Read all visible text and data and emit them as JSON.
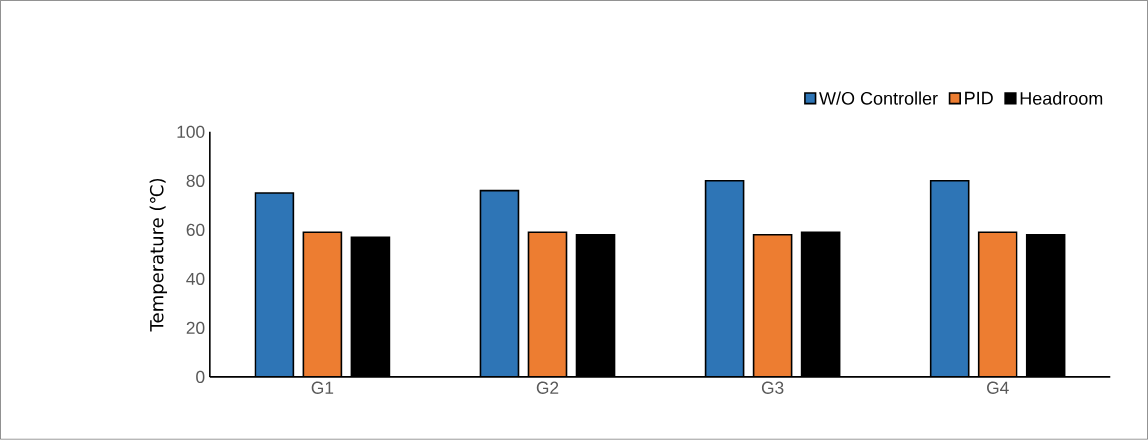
{
  "chart_data": {
    "type": "bar",
    "ylabel": "Temperature (℃)",
    "categories": [
      "G1",
      "G2",
      "G3",
      "G4"
    ],
    "series": [
      {
        "name": "W/O Controller",
        "color": "#2e75b6",
        "values": [
          75,
          76,
          80,
          80
        ]
      },
      {
        "name": "PID",
        "color": "#ed7d31",
        "values": [
          59,
          59,
          58,
          59
        ]
      },
      {
        "name": "Headroom",
        "color": "#000000",
        "values": [
          57,
          58,
          59,
          58
        ]
      }
    ],
    "ylim": [
      0,
      100
    ],
    "yticks": [
      0,
      20,
      40,
      60,
      80,
      100
    ],
    "legend": "top right"
  }
}
